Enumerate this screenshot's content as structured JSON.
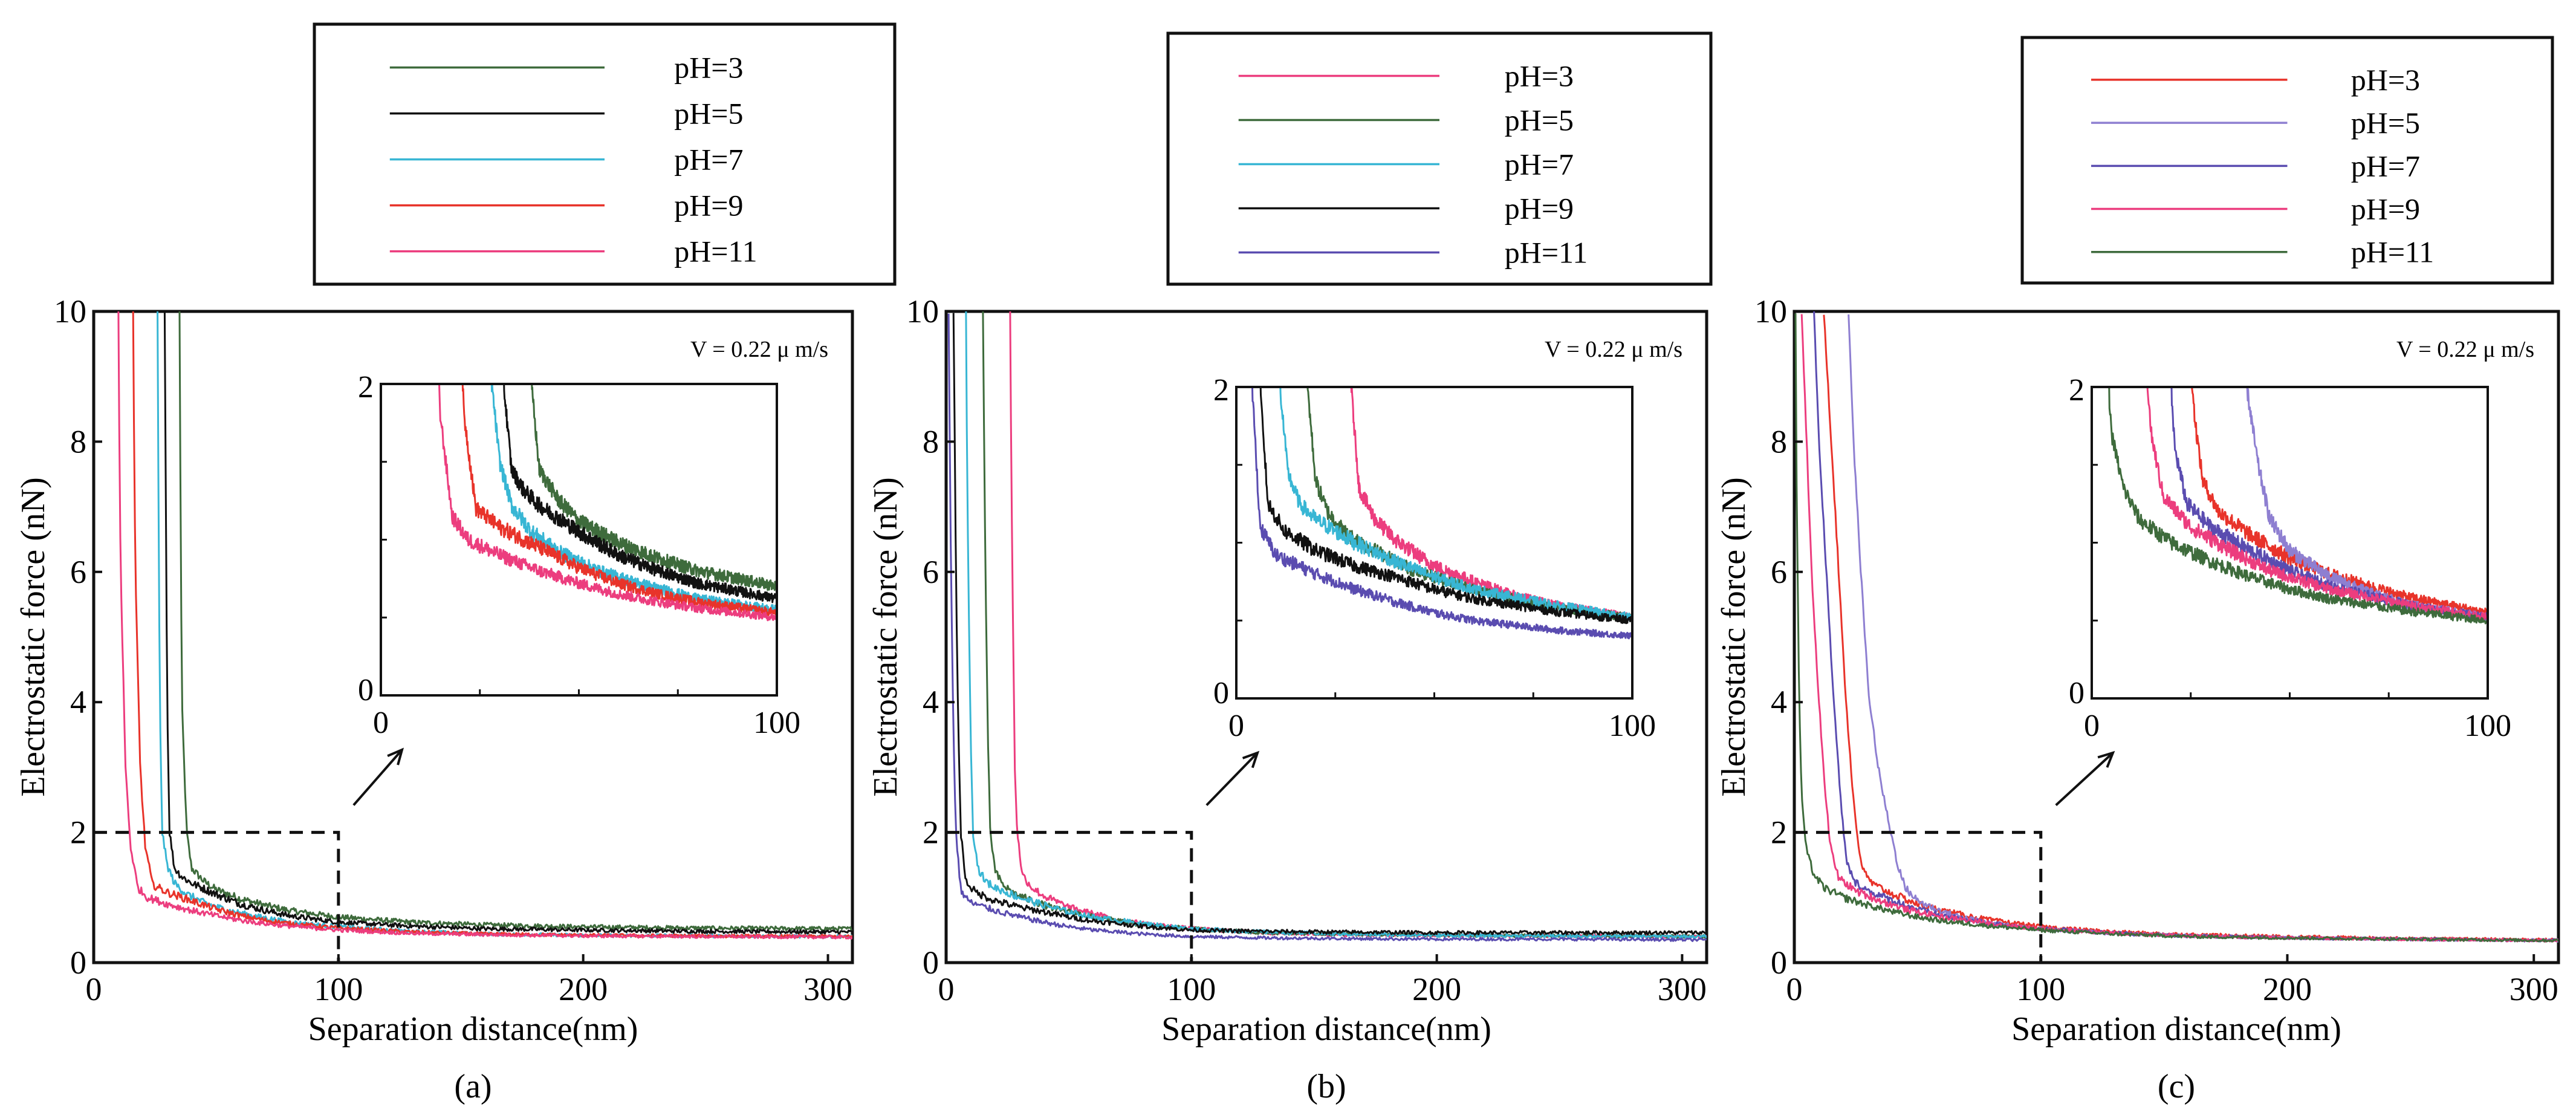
{
  "figure": {
    "panel_captions": [
      "(a)",
      "(b)",
      "(c)"
    ]
  },
  "chart_data": [
    {
      "panel": "(a)",
      "type": "line",
      "title": "",
      "xlabel": "Separation distance(nm)",
      "ylabel": "Electrostatic  force  (nN)",
      "xlim": [
        0,
        310
      ],
      "ylim": [
        0,
        10
      ],
      "xticks": [
        0,
        100,
        200,
        300
      ],
      "xtick_labels": [
        "0",
        "100",
        "200",
        "300"
      ],
      "yticks": [
        0,
        2,
        4,
        6,
        8,
        10
      ],
      "ytick_labels": [
        "0",
        "2",
        "4",
        "6",
        "8",
        "10"
      ],
      "annotation": "V = 0.22 μ m/s",
      "zoom_box": {
        "x": [
          0,
          100
        ],
        "y": [
          0,
          2
        ]
      },
      "inset": {
        "xlim": [
          0,
          100
        ],
        "ylim": [
          0,
          2
        ],
        "xtick_labels": [
          "0",
          "100"
        ],
        "ytick_labels": [
          "0",
          "2"
        ]
      },
      "series": [
        {
          "name": "pH=3",
          "color": "#3e6b3c",
          "x": [
            35,
            36,
            38,
            40,
            45,
            50,
            60,
            70,
            80,
            100,
            130,
            160,
            200,
            250,
            310
          ],
          "y": [
            10,
            4.0,
            2.0,
            1.45,
            1.25,
            1.12,
            0.98,
            0.88,
            0.8,
            0.7,
            0.62,
            0.58,
            0.55,
            0.53,
            0.52
          ]
        },
        {
          "name": "pH=5",
          "color": "#111111",
          "x": [
            29,
            30,
            31,
            33,
            36,
            40,
            50,
            60,
            70,
            80,
            100,
            130,
            160,
            200,
            250,
            310
          ],
          "y": [
            10,
            4.0,
            2.0,
            1.45,
            1.32,
            1.22,
            1.05,
            0.9,
            0.8,
            0.72,
            0.62,
            0.56,
            0.52,
            0.5,
            0.48,
            0.47
          ]
        },
        {
          "name": "pH=7",
          "color": "#38b6d4",
          "x": [
            26,
            27,
            28,
            30,
            33,
            38,
            45,
            55,
            65,
            80,
            100,
            130,
            160,
            200,
            250,
            310
          ],
          "y": [
            10,
            4.0,
            2.0,
            1.5,
            1.22,
            1.05,
            0.92,
            0.8,
            0.72,
            0.62,
            0.55,
            0.48,
            0.44,
            0.42,
            0.41,
            0.4
          ]
        },
        {
          "name": "pH=9",
          "color": "#e8332a",
          "x": [
            16,
            17,
            19,
            21,
            24,
            30,
            40,
            50,
            60,
            70,
            80,
            100,
            130,
            160,
            200,
            250,
            310
          ],
          "y": [
            10,
            6.0,
            3.0,
            1.8,
            1.2,
            1.08,
            0.95,
            0.82,
            0.72,
            0.65,
            0.6,
            0.53,
            0.47,
            0.44,
            0.42,
            0.41,
            0.4
          ]
        },
        {
          "name": "pH=11",
          "color": "#ec3d7e",
          "x": [
            10,
            11,
            13,
            15,
            18,
            22,
            30,
            40,
            50,
            60,
            70,
            80,
            100,
            130,
            160,
            200,
            250,
            310
          ],
          "y": [
            10,
            6.0,
            3.0,
            1.8,
            1.15,
            1.0,
            0.9,
            0.8,
            0.72,
            0.65,
            0.6,
            0.56,
            0.5,
            0.45,
            0.43,
            0.41,
            0.4,
            0.39
          ]
        }
      ]
    },
    {
      "panel": "(b)",
      "type": "line",
      "title": "",
      "xlabel": "Separation distance(nm)",
      "ylabel": "Electrostatic  force  (nN)",
      "xlim": [
        0,
        310
      ],
      "ylim": [
        0,
        10
      ],
      "xticks": [
        0,
        100,
        200,
        300
      ],
      "xtick_labels": [
        "0",
        "100",
        "200",
        "300"
      ],
      "yticks": [
        0,
        2,
        4,
        6,
        8,
        10
      ],
      "ytick_labels": [
        "0",
        "2",
        "4",
        "6",
        "8",
        "10"
      ],
      "annotation": "V = 0.22 μ m/s",
      "zoom_box": {
        "x": [
          0,
          100
        ],
        "y": [
          0,
          2
        ]
      },
      "inset": {
        "xlim": [
          0,
          100
        ],
        "ylim": [
          0,
          2
        ],
        "xtick_labels": [
          "0",
          "100"
        ],
        "ytick_labels": [
          "0",
          "2"
        ]
      },
      "series": [
        {
          "name": "pH=3",
          "color": "#ec3d7e",
          "x": [
            26,
            27,
            28,
            29,
            31,
            35,
            40,
            50,
            60,
            70,
            80,
            100,
            130,
            160,
            200,
            250,
            310
          ],
          "y": [
            10,
            6.0,
            3.0,
            2.0,
            1.35,
            1.15,
            1.02,
            0.85,
            0.75,
            0.66,
            0.6,
            0.52,
            0.46,
            0.43,
            0.42,
            0.41,
            0.4
          ]
        },
        {
          "name": "pH=5",
          "color": "#3e6b3c",
          "x": [
            15,
            16,
            17,
            18,
            20,
            23,
            28,
            35,
            45,
            60,
            80,
            100,
            130,
            160,
            200,
            250,
            310
          ],
          "y": [
            10,
            6.0,
            3.5,
            2.0,
            1.4,
            1.2,
            1.05,
            0.95,
            0.82,
            0.7,
            0.58,
            0.52,
            0.46,
            0.44,
            0.42,
            0.41,
            0.4
          ]
        },
        {
          "name": "pH=7",
          "color": "#38b6d4",
          "x": [
            8,
            9,
            10,
            11,
            13,
            16,
            20,
            30,
            40,
            50,
            60,
            80,
            100,
            130,
            160,
            200,
            250,
            310
          ],
          "y": [
            10,
            6.0,
            3.5,
            2.0,
            1.45,
            1.25,
            1.15,
            1.0,
            0.88,
            0.78,
            0.7,
            0.6,
            0.52,
            0.47,
            0.44,
            0.42,
            0.41,
            0.4
          ]
        },
        {
          "name": "pH=9",
          "color": "#111111",
          "x": [
            3,
            4,
            5,
            6,
            8,
            12,
            20,
            30,
            40,
            50,
            60,
            80,
            100,
            130,
            160,
            200,
            250,
            310
          ],
          "y": [
            10,
            6.0,
            3.5,
            2.0,
            1.25,
            1.08,
            0.95,
            0.85,
            0.78,
            0.7,
            0.64,
            0.56,
            0.5,
            0.48,
            0.47,
            0.46,
            0.46,
            0.46
          ]
        },
        {
          "name": "pH=11",
          "color": "#5a4cb0",
          "x": [
            1,
            2,
            3,
            4,
            6,
            10,
            20,
            30,
            40,
            50,
            60,
            80,
            100,
            130,
            160,
            200,
            250,
            310
          ],
          "y": [
            10,
            6.0,
            3.5,
            2.0,
            1.1,
            0.92,
            0.8,
            0.7,
            0.62,
            0.55,
            0.5,
            0.44,
            0.4,
            0.38,
            0.37,
            0.36,
            0.36,
            0.35
          ]
        }
      ]
    },
    {
      "panel": "(c)",
      "type": "line",
      "title": "",
      "xlabel": "Separation distance(nm)",
      "ylabel": "Electrostatic  force  (nN)",
      "xlim": [
        0,
        310
      ],
      "ylim": [
        0,
        10
      ],
      "xticks": [
        0,
        100,
        200,
        300
      ],
      "xtick_labels": [
        "0",
        "100",
        "200",
        "300"
      ],
      "yticks": [
        0,
        2,
        4,
        6,
        8,
        10
      ],
      "ytick_labels": [
        "0",
        "2",
        "4",
        "6",
        "8",
        "10"
      ],
      "annotation": "V = 0.22 μ m/s",
      "zoom_box": {
        "x": [
          0,
          100
        ],
        "y": [
          0,
          2
        ]
      },
      "inset": {
        "xlim": [
          0,
          100
        ],
        "ylim": [
          0,
          2
        ],
        "xtick_labels": [
          "0",
          "100"
        ],
        "ytick_labels": [
          "0",
          "2"
        ]
      },
      "series": [
        {
          "name": "pH=3",
          "color": "#e8332a",
          "x": [
            12,
            15,
            18,
            21,
            24,
            26,
            28,
            32,
            40,
            50,
            60,
            70,
            80,
            100,
            130,
            160,
            200,
            250,
            310
          ],
          "y": [
            10,
            8.0,
            6.0,
            4.0,
            2.5,
            1.8,
            1.4,
            1.2,
            1.05,
            0.9,
            0.8,
            0.72,
            0.65,
            0.55,
            0.47,
            0.43,
            0.4,
            0.37,
            0.35
          ]
        },
        {
          "name": "pH=5",
          "color": "#8e7fd1",
          "x": [
            22,
            24,
            27,
            30,
            34,
            38,
            42,
            45,
            50,
            60,
            70,
            80,
            100,
            130,
            160,
            200,
            250,
            310
          ],
          "y": [
            10,
            8.0,
            6.0,
            4.2,
            3.0,
            2.2,
            1.5,
            1.15,
            0.95,
            0.78,
            0.68,
            0.6,
            0.52,
            0.45,
            0.41,
            0.38,
            0.36,
            0.34
          ]
        },
        {
          "name": "pH=7",
          "color": "#5a4cb0",
          "x": [
            8,
            10,
            13,
            16,
            19,
            21,
            24,
            30,
            40,
            50,
            60,
            80,
            100,
            130,
            160,
            200,
            250,
            310
          ],
          "y": [
            10,
            8.0,
            6.0,
            4.0,
            2.4,
            1.6,
            1.25,
            1.1,
            0.95,
            0.82,
            0.72,
            0.6,
            0.52,
            0.45,
            0.41,
            0.38,
            0.36,
            0.34
          ]
        },
        {
          "name": "pH=9",
          "color": "#ec3d7e",
          "x": [
            3,
            5,
            7,
            10,
            13,
            15,
            18,
            25,
            35,
            45,
            60,
            80,
            100,
            130,
            160,
            200,
            250,
            310
          ],
          "y": [
            10,
            8.0,
            6.0,
            4.0,
            2.4,
            1.7,
            1.3,
            1.1,
            0.95,
            0.82,
            0.7,
            0.6,
            0.52,
            0.45,
            0.41,
            0.38,
            0.36,
            0.34
          ]
        },
        {
          "name": "pH=11",
          "color": "#3e6b3c",
          "x": [
            0.5,
            1,
            2,
            3,
            5,
            8,
            12,
            20,
            30,
            40,
            50,
            60,
            80,
            100,
            130,
            160,
            200,
            250,
            310
          ],
          "y": [
            10,
            7.0,
            4.0,
            2.5,
            1.7,
            1.35,
            1.15,
            1.0,
            0.88,
            0.78,
            0.7,
            0.64,
            0.56,
            0.5,
            0.44,
            0.4,
            0.38,
            0.36,
            0.34
          ]
        }
      ]
    }
  ]
}
